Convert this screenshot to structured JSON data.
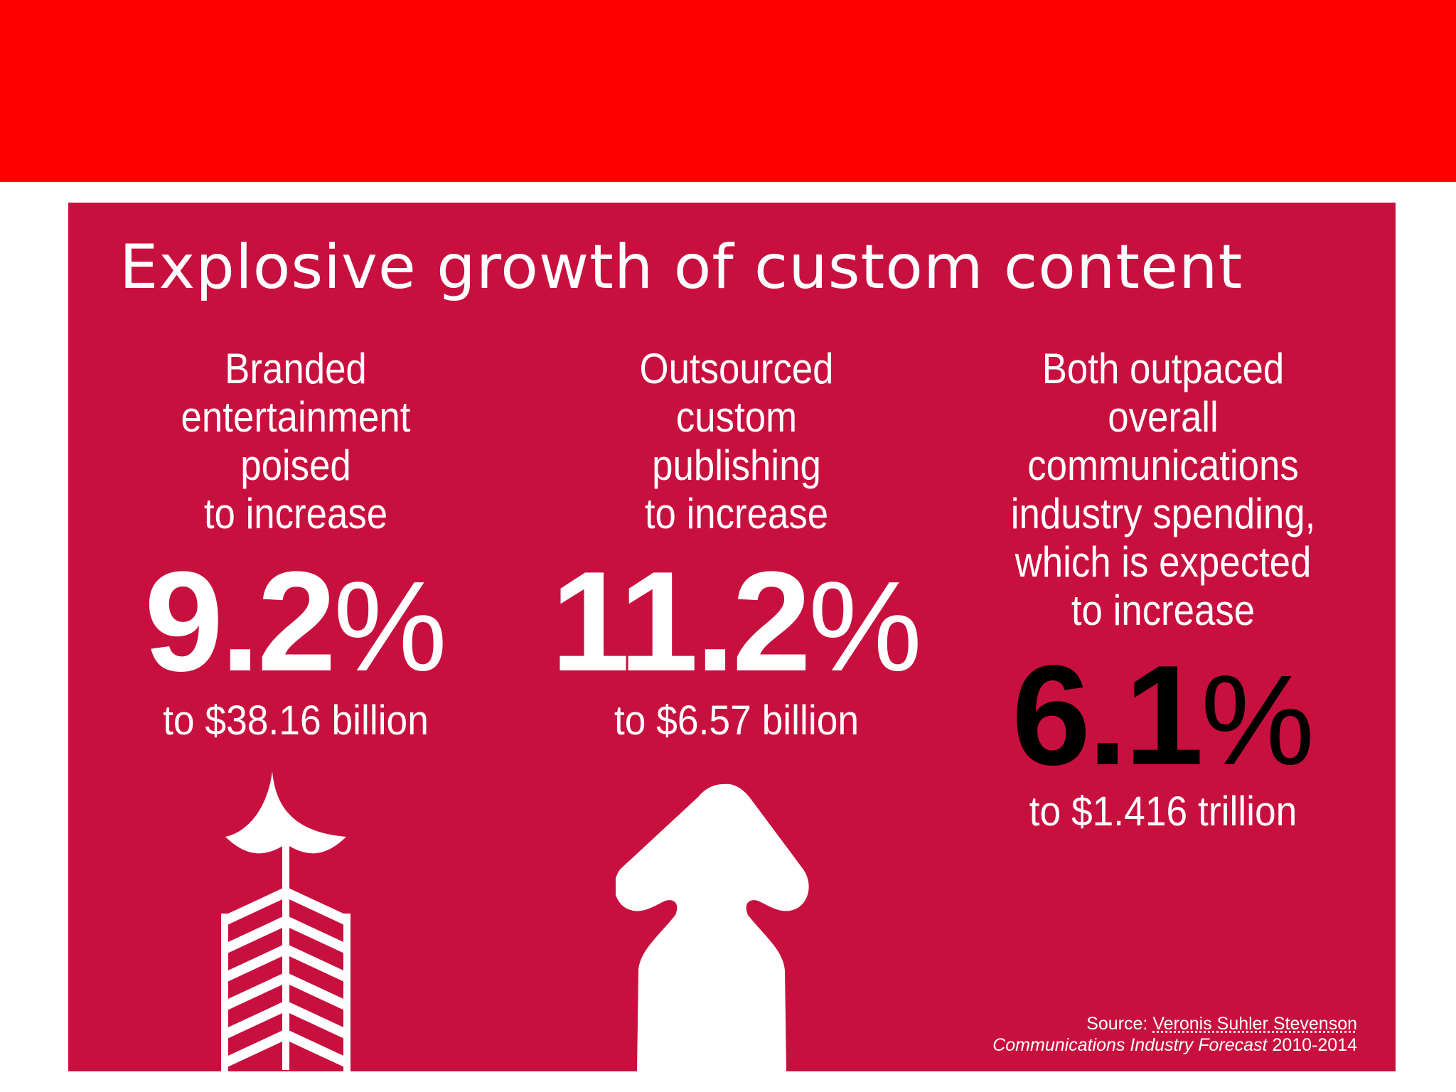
{
  "colors": {
    "band": "#ff0000",
    "panel": "#c8103f",
    "text": "#ffffff",
    "emphasis": "#000000"
  },
  "title": "Explosive growth of custom content",
  "stats": [
    {
      "description": [
        "Branded",
        "entertainment",
        "poised",
        "to increase"
      ],
      "percent_value": "9.2",
      "percent_sign": "%",
      "target": "to $38.16 billion"
    },
    {
      "description": [
        "Outsourced",
        "custom",
        "publishing",
        "to increase"
      ],
      "percent_value": "11.2",
      "percent_sign": "%",
      "target": "to $6.57 billion"
    },
    {
      "description": [
        "Both outpaced",
        "overall",
        "communications",
        "industry spending,",
        "which is expected",
        "to increase"
      ],
      "percent_value": "6.1",
      "percent_sign": "%",
      "target": "to $1.416 trillion"
    }
  ],
  "icons": [
    "arrow-icon",
    "upward-arrow-icon"
  ],
  "source": {
    "label": "Source:",
    "name": "Veronis Suhler Stevenson",
    "publication": "Communications Industry Forecast",
    "years": "2010-2014"
  }
}
